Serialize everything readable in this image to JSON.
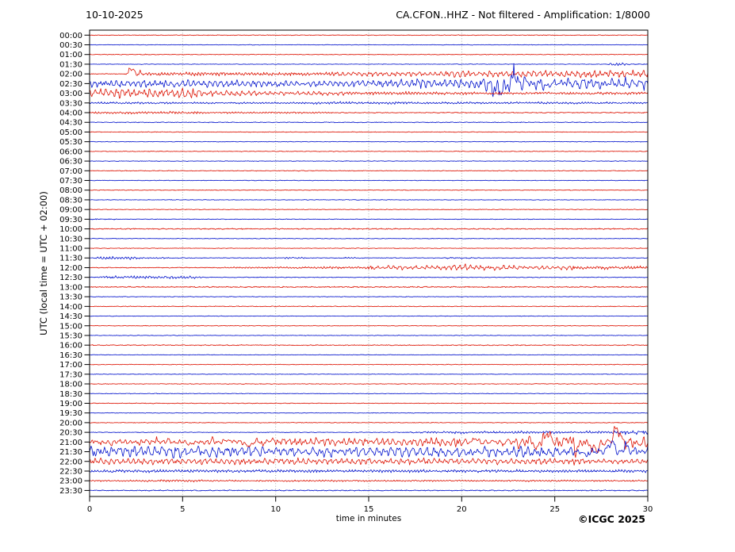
{
  "header": {
    "date": "10-10-2025",
    "station_title": "CA.CFON..HHZ - Not filtered - Amplification: 1/8000"
  },
  "axes": {
    "y_label": "UTC (local time = UTC + 02:00)",
    "x_label": "time in minutes",
    "x_ticks": [
      0,
      5,
      10,
      15,
      20,
      25,
      30
    ],
    "x_range": [
      0,
      30
    ],
    "grid_minutes": [
      5,
      10,
      15,
      20,
      25
    ],
    "grid_style": "dotted-vertical"
  },
  "footer": {
    "copyright": "©ICGC 2025"
  },
  "colors": {
    "trace_red": "#dd1100",
    "trace_blue": "#0011cc",
    "grid": "#9a9a9a",
    "axis": "#000000",
    "background": "#ffffff"
  },
  "chart_data": {
    "type": "line",
    "subtype": "seismogram-helicorder",
    "station": "CA.CFON..HHZ",
    "date": "10-10-2025",
    "filter": "Not filtered",
    "amplification": "1/8000",
    "row_duration_minutes": 30,
    "segment_fields": "[start_min, end_min, amplitude_px, spiky]",
    "rows": [
      {
        "time": "00:00",
        "color": "red",
        "segments": [
          [
            0,
            30,
            0.5
          ]
        ]
      },
      {
        "time": "00:30",
        "color": "blue",
        "segments": [
          [
            0,
            30,
            0.45
          ]
        ]
      },
      {
        "time": "01:00",
        "color": "red",
        "segments": [
          [
            0,
            30,
            0.55
          ]
        ]
      },
      {
        "time": "01:30",
        "color": "blue",
        "segments": [
          [
            0,
            28,
            0.45
          ],
          [
            28,
            28.8,
            2.2
          ],
          [
            28.8,
            30,
            0.7
          ]
        ]
      },
      {
        "time": "02:00",
        "color": "red",
        "segments": [
          [
            0,
            2.1,
            0.6
          ],
          [
            2.1,
            2.7,
            7.5,
            1
          ],
          [
            2.7,
            9,
            2.4
          ],
          [
            9,
            13,
            2.1
          ],
          [
            13,
            19,
            3
          ],
          [
            19,
            24,
            4.2
          ],
          [
            24,
            30,
            4.6
          ]
        ]
      },
      {
        "time": "02:30",
        "color": "blue",
        "segments": [
          [
            0,
            8,
            4.6
          ],
          [
            8,
            15,
            4.2
          ],
          [
            15,
            21,
            5.5
          ],
          [
            21,
            23.3,
            22,
            1
          ],
          [
            23.3,
            24.4,
            6.5
          ],
          [
            24.4,
            25.6,
            10,
            1
          ],
          [
            25.6,
            28,
            6.5
          ],
          [
            28,
            30,
            7.5
          ]
        ]
      },
      {
        "time": "03:00",
        "color": "red",
        "segments": [
          [
            0,
            6,
            5.8
          ],
          [
            6,
            9,
            3.8
          ],
          [
            9,
            14,
            2.6
          ],
          [
            14,
            20,
            2
          ],
          [
            20,
            30,
            1.7
          ]
        ]
      },
      {
        "time": "03:30",
        "color": "blue",
        "segments": [
          [
            0,
            6,
            1.3
          ],
          [
            6,
            12,
            1.1
          ],
          [
            12,
            17,
            1.7
          ],
          [
            17,
            30,
            1.3
          ]
        ]
      },
      {
        "time": "04:00",
        "color": "red",
        "segments": [
          [
            0,
            6,
            1.5
          ],
          [
            6,
            13,
            1.1
          ],
          [
            13,
            30,
            0.65
          ]
        ]
      },
      {
        "time": "04:30",
        "color": "blue",
        "segments": [
          [
            0,
            30,
            0.55
          ]
        ]
      },
      {
        "time": "05:00",
        "color": "red",
        "segments": [
          [
            0,
            30,
            0.5
          ]
        ]
      },
      {
        "time": "05:30",
        "color": "blue",
        "segments": [
          [
            0,
            30,
            0.45
          ]
        ]
      },
      {
        "time": "06:00",
        "color": "red",
        "segments": [
          [
            0,
            30,
            0.5
          ]
        ]
      },
      {
        "time": "06:30",
        "color": "blue",
        "segments": [
          [
            0,
            30,
            0.45
          ]
        ]
      },
      {
        "time": "07:00",
        "color": "red",
        "segments": [
          [
            0,
            30,
            0.55
          ]
        ]
      },
      {
        "time": "07:30",
        "color": "blue",
        "segments": [
          [
            0,
            30,
            0.45
          ]
        ]
      },
      {
        "time": "08:00",
        "color": "red",
        "segments": [
          [
            0,
            30,
            0.5
          ]
        ]
      },
      {
        "time": "08:30",
        "color": "blue",
        "segments": [
          [
            0,
            30,
            0.45
          ]
        ]
      },
      {
        "time": "09:00",
        "color": "red",
        "segments": [
          [
            0,
            30,
            0.5
          ]
        ]
      },
      {
        "time": "09:30",
        "color": "blue",
        "segments": [
          [
            0,
            1.5,
            0.75
          ],
          [
            1.5,
            30,
            0.45
          ]
        ]
      },
      {
        "time": "10:00",
        "color": "red",
        "segments": [
          [
            0,
            30,
            0.8
          ]
        ]
      },
      {
        "time": "10:30",
        "color": "blue",
        "segments": [
          [
            0,
            30,
            0.45
          ]
        ]
      },
      {
        "time": "11:00",
        "color": "red",
        "segments": [
          [
            0,
            30,
            0.5
          ]
        ]
      },
      {
        "time": "11:30",
        "color": "blue",
        "segments": [
          [
            0,
            0.4,
            0.6
          ],
          [
            0.4,
            2.6,
            2.1
          ],
          [
            2.6,
            4.2,
            0.95
          ],
          [
            4.2,
            10.3,
            0.55
          ],
          [
            10.3,
            11.6,
            1.05
          ],
          [
            11.6,
            13.6,
            0.55
          ],
          [
            13.6,
            14.6,
            1.05
          ],
          [
            14.6,
            19,
            0.55
          ],
          [
            19,
            21,
            0.85
          ],
          [
            21,
            30,
            0.55
          ]
        ]
      },
      {
        "time": "12:00",
        "color": "red",
        "segments": [
          [
            0,
            7,
            0.65
          ],
          [
            7,
            12,
            1.1
          ],
          [
            12,
            15,
            1.5
          ],
          [
            15,
            19,
            2.6
          ],
          [
            19,
            22.5,
            3.9
          ],
          [
            22.5,
            26,
            3
          ],
          [
            26,
            30,
            2.1
          ]
        ]
      },
      {
        "time": "12:30",
        "color": "blue",
        "segments": [
          [
            0,
            0.6,
            0.65
          ],
          [
            0.6,
            6,
            1.8
          ],
          [
            6,
            30,
            0.55
          ]
        ]
      },
      {
        "time": "13:00",
        "color": "red",
        "segments": [
          [
            0,
            30,
            0.85
          ]
        ]
      },
      {
        "time": "13:30",
        "color": "blue",
        "segments": [
          [
            0,
            30,
            0.5
          ]
        ]
      },
      {
        "time": "14:00",
        "color": "red",
        "segments": [
          [
            0,
            30,
            0.55
          ]
        ]
      },
      {
        "time": "14:30",
        "color": "blue",
        "segments": [
          [
            0,
            30,
            0.45
          ]
        ]
      },
      {
        "time": "15:00",
        "color": "red",
        "segments": [
          [
            0,
            30,
            0.5
          ]
        ]
      },
      {
        "time": "15:30",
        "color": "blue",
        "segments": [
          [
            0,
            30,
            0.45
          ]
        ]
      },
      {
        "time": "16:00",
        "color": "red",
        "segments": [
          [
            0,
            30,
            0.65
          ]
        ]
      },
      {
        "time": "16:30",
        "color": "blue",
        "segments": [
          [
            0,
            30,
            0.45
          ]
        ]
      },
      {
        "time": "17:00",
        "color": "red",
        "segments": [
          [
            0,
            30,
            0.5
          ]
        ]
      },
      {
        "time": "17:30",
        "color": "blue",
        "segments": [
          [
            0,
            30,
            0.45
          ]
        ]
      },
      {
        "time": "18:00",
        "color": "red",
        "segments": [
          [
            0,
            30,
            0.5
          ]
        ]
      },
      {
        "time": "18:30",
        "color": "blue",
        "segments": [
          [
            0,
            30,
            0.45
          ]
        ]
      },
      {
        "time": "19:00",
        "color": "red",
        "segments": [
          [
            0,
            30,
            0.5
          ]
        ]
      },
      {
        "time": "19:30",
        "color": "blue",
        "segments": [
          [
            0,
            30,
            0.45
          ]
        ]
      },
      {
        "time": "20:00",
        "color": "red",
        "segments": [
          [
            0,
            30,
            0.55
          ]
        ]
      },
      {
        "time": "20:30",
        "color": "blue",
        "segments": [
          [
            0,
            17,
            0.5
          ],
          [
            17,
            18.2,
            0.9
          ],
          [
            18.2,
            22,
            1.7
          ],
          [
            22,
            28,
            1.7
          ],
          [
            28,
            29.2,
            2.4
          ],
          [
            29.2,
            29.7,
            4.5,
            1
          ],
          [
            29.7,
            30,
            2.4
          ]
        ]
      },
      {
        "time": "21:00",
        "color": "red",
        "segments": [
          [
            0,
            5,
            4.8,
            1
          ],
          [
            5,
            10,
            5.2,
            1
          ],
          [
            10,
            17,
            5
          ],
          [
            17,
            20,
            5.5
          ],
          [
            20,
            23,
            6.5,
            1
          ],
          [
            23,
            30,
            13,
            1
          ]
        ]
      },
      {
        "time": "21:30",
        "color": "blue",
        "segments": [
          [
            0,
            4,
            6.8
          ],
          [
            4,
            9,
            7.2
          ],
          [
            9,
            17,
            6.4
          ],
          [
            17,
            21,
            6.8
          ],
          [
            21,
            26,
            7.2
          ],
          [
            26,
            30,
            8.5,
            1
          ]
        ]
      },
      {
        "time": "22:00",
        "color": "red",
        "segments": [
          [
            0,
            5,
            4.4
          ],
          [
            5,
            12,
            3.8
          ],
          [
            12,
            18,
            4
          ],
          [
            18,
            24,
            3.8
          ],
          [
            24,
            27,
            4.2
          ],
          [
            27,
            30,
            2.8
          ]
        ]
      },
      {
        "time": "22:30",
        "color": "blue",
        "segments": [
          [
            0,
            30,
            1.9
          ]
        ]
      },
      {
        "time": "23:00",
        "color": "red",
        "segments": [
          [
            0,
            3,
            0.95
          ],
          [
            3,
            6,
            1.5
          ],
          [
            6,
            30,
            1.05
          ]
        ]
      },
      {
        "time": "23:30",
        "color": "blue",
        "segments": [
          [
            0,
            30,
            0.75
          ]
        ]
      }
    ]
  }
}
